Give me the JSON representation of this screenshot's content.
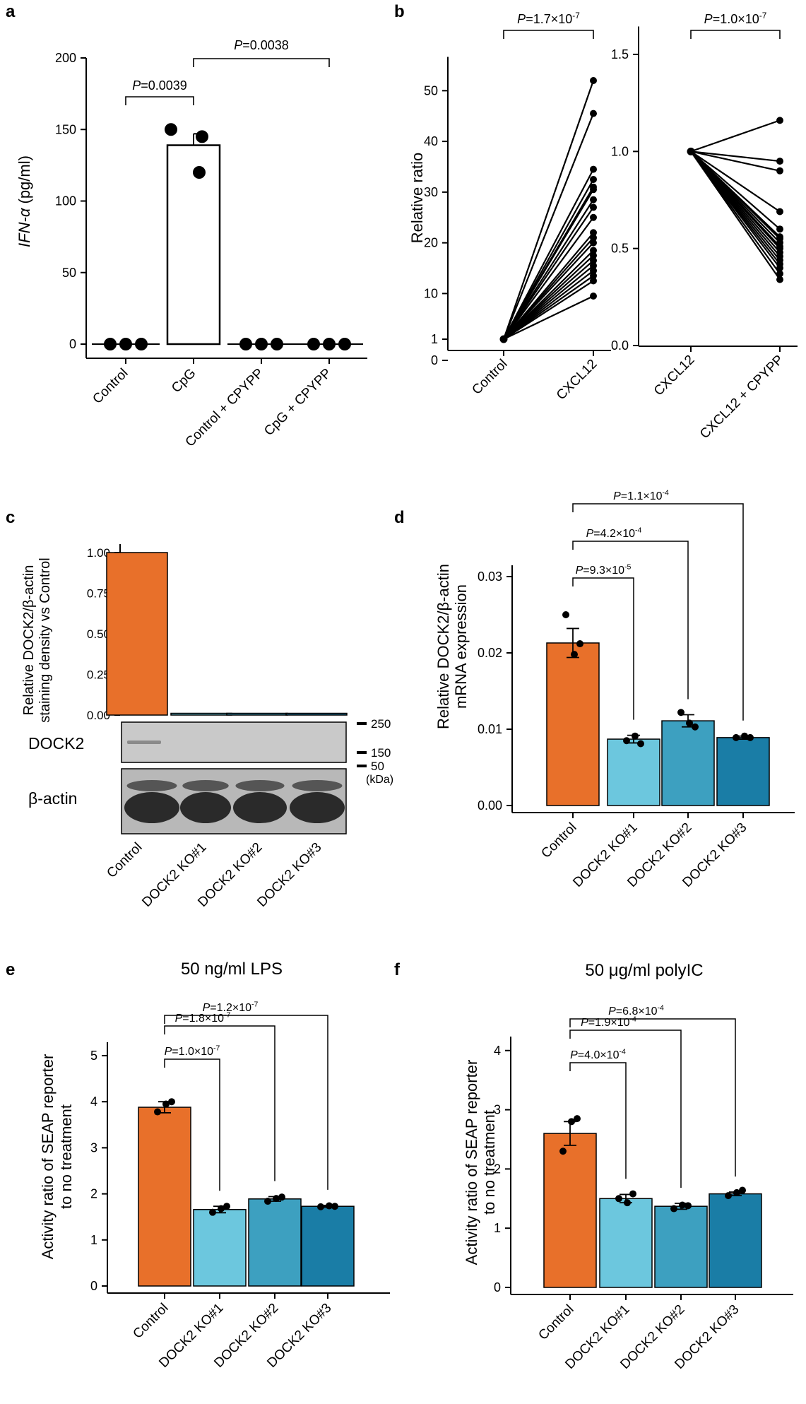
{
  "colors": {
    "control": "#E8702A",
    "ko1": "#6CC7DE",
    "ko2": "#3DA0C0",
    "ko3": "#1A7DA6",
    "ink": "#000000",
    "blot_bg": "#C9C9C9"
  },
  "chart_data": [
    {
      "panel": "a",
      "type": "bar",
      "title": "",
      "categories": [
        "Control",
        "CpG",
        "Control + CPYPP",
        "CpG + CPYPP"
      ],
      "values": [
        0,
        139,
        0,
        0
      ],
      "errors": [
        0,
        8,
        0,
        0
      ],
      "points": [
        [
          0,
          0,
          0
        ],
        [
          150,
          145,
          120
        ],
        [
          0,
          0,
          0
        ],
        [
          0,
          0,
          0
        ]
      ],
      "ylabel_italic": "IFN-α",
      "ylabel_rest": " (pg/ml)",
      "ylim": [
        0,
        200
      ],
      "yticks": [
        0,
        50,
        100,
        150,
        200
      ],
      "ytick_labels": [
        "0",
        "50",
        "100",
        "150",
        "200"
      ],
      "comparisons": [
        {
          "from": 0,
          "to": 1,
          "label": "=0.0039",
          "value": 0.0039
        },
        {
          "from": 1,
          "to": 3,
          "label": "=0.0038",
          "value": 0.0038
        }
      ]
    },
    {
      "panel": "b-left",
      "type": "paired-line",
      "categories": [
        "Control",
        "CXCL12"
      ],
      "ylabel": "Relative ratio",
      "ylim": [
        0,
        55
      ],
      "yticks": [
        0,
        1,
        10,
        20,
        30,
        40,
        50
      ],
      "ytick_labels": [
        "0",
        "1",
        "10",
        "20",
        "30",
        "40",
        "50"
      ],
      "start_value": 1,
      "end_values": [
        9.5,
        12.5,
        13.5,
        14.5,
        15.5,
        16.5,
        17.5,
        18.5,
        20,
        21,
        22,
        25,
        27,
        28.5,
        30.5,
        31,
        32.5,
        34.5,
        45.5,
        52
      ],
      "comparison": {
        "label": "=1.7×10",
        "exp": "-7",
        "value": 1.7e-07
      }
    },
    {
      "panel": "b-right",
      "type": "paired-line",
      "categories": [
        "CXCL12",
        "CXCL12 + CPYPP"
      ],
      "ylim": [
        0,
        1.6
      ],
      "yticks": [
        0.0,
        0.5,
        1.0,
        1.5
      ],
      "ytick_labels": [
        "0.0",
        "0.5",
        "1.0",
        "1.5"
      ],
      "start_value": 1.0,
      "end_values": [
        0.34,
        0.37,
        0.4,
        0.42,
        0.44,
        0.46,
        0.48,
        0.5,
        0.51,
        0.53,
        0.55,
        0.56,
        0.6,
        0.69,
        0.9,
        0.95,
        1.16
      ],
      "comparison": {
        "label": "=1.0×10",
        "exp": "-7",
        "value": 1e-07
      }
    },
    {
      "panel": "c",
      "type": "bar",
      "categories": [
        "Control",
        "DOCK2 KO#1",
        "DOCK2 KO#2",
        "DOCK2 KO#3"
      ],
      "values": [
        1.0,
        0.01,
        0.005,
        0.005
      ],
      "ylabel_lines": [
        "Relative DOCK2/β-actin",
        "staining density vs Control"
      ],
      "ylim": [
        0,
        1.0
      ],
      "yticks": [
        0,
        0.25,
        0.5,
        0.75,
        1.0
      ],
      "ytick_labels": [
        "0.00",
        "0.25",
        "0.50",
        "0.75",
        "1.00"
      ],
      "blot_labels": {
        "dock2": "DOCK2",
        "actin": "β-actin"
      },
      "markers": [
        "250",
        "150",
        "50"
      ],
      "kda": "(kDa)"
    },
    {
      "panel": "d",
      "type": "bar",
      "categories": [
        "Control",
        "DOCK2 KO#1",
        "DOCK2 KO#2",
        "DOCK2 KO#3"
      ],
      "values": [
        0.0213,
        0.0087,
        0.0111,
        0.0089
      ],
      "errors": [
        0.0019,
        0.0005,
        0.0008,
        0.0002
      ],
      "points": [
        [
          0.025,
          0.0198,
          0.0212
        ],
        [
          0.0085,
          0.0091,
          0.0081
        ],
        [
          0.0122,
          0.0108,
          0.0103
        ],
        [
          0.0089,
          0.0091,
          0.0089
        ]
      ],
      "ylabel_lines": [
        "Relative DOCK2/β-actin",
        "mRNA expression"
      ],
      "ylim": [
        0,
        0.03
      ],
      "yticks": [
        0,
        0.01,
        0.02,
        0.03
      ],
      "ytick_labels": [
        "0.00",
        "0.01",
        "0.02",
        "0.03"
      ],
      "comparisons": [
        {
          "from": 0,
          "to": 1,
          "label": "=9.3×10",
          "exp": "-5",
          "value": 9.3e-05
        },
        {
          "from": 0,
          "to": 2,
          "label": "=4.2×10",
          "exp": "-4",
          "value": 0.00042
        },
        {
          "from": 0,
          "to": 3,
          "label": "=1.1×10",
          "exp": "-4",
          "value": 0.00011
        }
      ]
    },
    {
      "panel": "e",
      "type": "bar",
      "title": "50 ng/ml LPS",
      "categories": [
        "Control",
        "DOCK2 KO#1",
        "DOCK2 KO#2",
        "DOCK2 KO#3"
      ],
      "values": [
        3.88,
        1.66,
        1.89,
        1.73
      ],
      "errors": [
        0.12,
        0.07,
        0.05,
        0.02
      ],
      "points": [
        [
          3.78,
          3.95,
          4.0
        ],
        [
          1.6,
          1.68,
          1.73
        ],
        [
          1.84,
          1.9,
          1.93
        ],
        [
          1.72,
          1.74,
          1.73
        ]
      ],
      "ylabel_lines": [
        "Activity ratio of SEAP reporter",
        "to no treatment"
      ],
      "ylim": [
        0,
        5
      ],
      "yticks": [
        0,
        1,
        2,
        3,
        4,
        5
      ],
      "ytick_labels": [
        "0",
        "1",
        "2",
        "3",
        "4",
        "5"
      ],
      "comparisons": [
        {
          "from": 0,
          "to": 1,
          "label": "=1.0×10",
          "exp": "-7",
          "value": 1e-07
        },
        {
          "from": 0,
          "to": 2,
          "label": "=1.8×10",
          "exp": "-7",
          "value": 1.8e-07
        },
        {
          "from": 0,
          "to": 3,
          "label": "=1.2×10",
          "exp": "-7",
          "value": 1.2e-07
        }
      ]
    },
    {
      "panel": "f",
      "type": "bar",
      "title": "50 μg/ml polyIC",
      "categories": [
        "Control",
        "DOCK2 KO#1",
        "DOCK2 KO#2",
        "DOCK2 KO#3"
      ],
      "values": [
        2.6,
        1.5,
        1.37,
        1.58
      ],
      "errors": [
        0.2,
        0.07,
        0.05,
        0.03
      ],
      "points": [
        [
          2.3,
          2.8,
          2.85
        ],
        [
          1.5,
          1.43,
          1.58
        ],
        [
          1.33,
          1.39,
          1.38
        ],
        [
          1.55,
          1.6,
          1.64
        ]
      ],
      "ylabel_lines": [
        "Activity ratio of SEAP reporter",
        "to no treatment"
      ],
      "ylim": [
        0,
        4.2
      ],
      "yticks": [
        0,
        1,
        2,
        3,
        4
      ],
      "ytick_labels": [
        "0",
        "1",
        "2",
        "3",
        "4"
      ],
      "comparisons": [
        {
          "from": 0,
          "to": 1,
          "label": "=4.0×10",
          "exp": "-4",
          "value": 0.0004
        },
        {
          "from": 0,
          "to": 2,
          "label": "=1.9×10",
          "exp": "-4",
          "value": 0.00019
        },
        {
          "from": 0,
          "to": 3,
          "label": "=6.8×10",
          "exp": "-4",
          "value": 0.00068
        }
      ]
    }
  ],
  "panel_letters": [
    "a",
    "b",
    "c",
    "d",
    "e",
    "f"
  ],
  "p_symbol": "P"
}
